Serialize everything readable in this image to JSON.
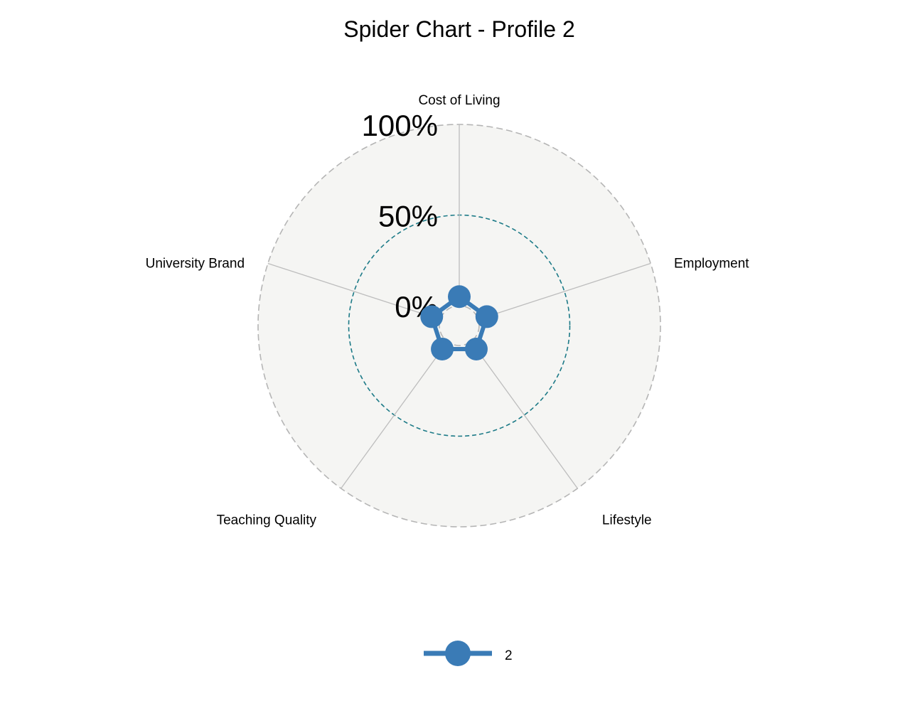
{
  "chart_data": {
    "type": "radar",
    "title": "Spider Chart - Profile 2",
    "axes": [
      "Cost of Living",
      "Employment",
      "Lifestyle",
      "Teaching Quality",
      "University Brand"
    ],
    "grid_levels": [
      {
        "value": 0,
        "label": "0%"
      },
      {
        "value": 0.5,
        "label": "50%"
      },
      {
        "value": 1,
        "label": "100%"
      }
    ],
    "series": [
      {
        "name": "2",
        "color": "#3a7bb6",
        "values": [
          0.05,
          0.05,
          0.05,
          0.05,
          0.05
        ]
      }
    ],
    "legend_position": "bottom",
    "colors": {
      "panel_fill": "#f5f5f3",
      "outer_grid": "#b5b5b5",
      "mid_grid": "#1c7a87",
      "axis_lines": "#bdbdbd",
      "series": "#3a7bb6"
    }
  }
}
